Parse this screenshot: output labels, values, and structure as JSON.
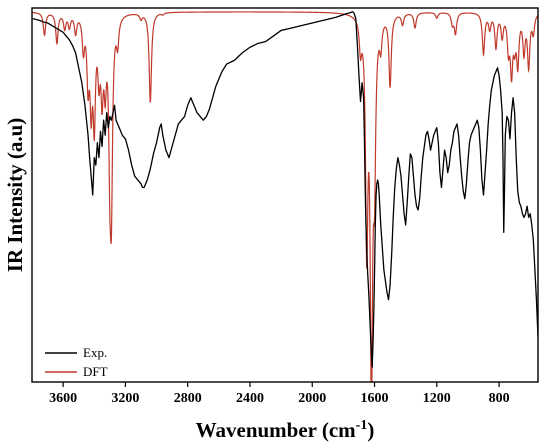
{
  "chart_data": {
    "type": "line",
    "xlabel_main": "Wavenumber (cm",
    "xlabel_sup": "-1",
    "xlabel_end": ")",
    "ylabel": "IR Intensity (a.u)",
    "xlim": [
      3800,
      550
    ],
    "ylim": [
      0,
      1
    ],
    "x_reversed": true,
    "x_ticks": [
      3600,
      3200,
      2800,
      2400,
      2000,
      1600,
      1200,
      800
    ],
    "y_ticks_shown": false,
    "legend_position": "bottom-left",
    "series": [
      {
        "name": "Exp.",
        "color": "#000000",
        "x": [
          3800,
          3760,
          3720,
          3700,
          3680,
          3660,
          3640,
          3620,
          3600,
          3580,
          3560,
          3540,
          3520,
          3510,
          3500,
          3480,
          3460,
          3440,
          3430,
          3420,
          3410,
          3400,
          3390,
          3380,
          3370,
          3360,
          3350,
          3340,
          3330,
          3320,
          3310,
          3300,
          3290,
          3280,
          3270,
          3260,
          3250,
          3240,
          3220,
          3200,
          3180,
          3160,
          3140,
          3120,
          3100,
          3090,
          3080,
          3060,
          3040,
          3020,
          3000,
          2980,
          2970,
          2960,
          2940,
          2920,
          2900,
          2880,
          2860,
          2840,
          2820,
          2800,
          2780,
          2760,
          2740,
          2720,
          2700,
          2680,
          2660,
          2640,
          2620,
          2600,
          2580,
          2550,
          2500,
          2450,
          2400,
          2350,
          2300,
          2250,
          2200,
          2150,
          2100,
          2050,
          2000,
          1950,
          1900,
          1850,
          1800,
          1780,
          1760,
          1740,
          1730,
          1720,
          1710,
          1700,
          1690,
          1680,
          1670,
          1665,
          1660,
          1655,
          1650,
          1645,
          1640,
          1635,
          1630,
          1625,
          1620,
          1615,
          1610,
          1605,
          1600,
          1595,
          1590,
          1585,
          1580,
          1575,
          1570,
          1565,
          1560,
          1550,
          1540,
          1530,
          1520,
          1510,
          1500,
          1490,
          1480,
          1470,
          1460,
          1450,
          1440,
          1430,
          1420,
          1410,
          1400,
          1390,
          1380,
          1370,
          1360,
          1350,
          1340,
          1330,
          1320,
          1310,
          1300,
          1290,
          1280,
          1270,
          1260,
          1250,
          1240,
          1230,
          1220,
          1210,
          1200,
          1190,
          1180,
          1170,
          1160,
          1150,
          1140,
          1130,
          1120,
          1110,
          1100,
          1090,
          1080,
          1070,
          1060,
          1050,
          1040,
          1030,
          1020,
          1010,
          1000,
          990,
          980,
          970,
          960,
          950,
          940,
          930,
          920,
          910,
          900,
          890,
          880,
          870,
          860,
          850,
          840,
          830,
          820,
          810,
          800,
          790,
          780,
          775,
          770,
          765,
          760,
          750,
          740,
          730,
          720,
          710,
          700,
          690,
          680,
          670,
          660,
          650,
          640,
          630,
          620,
          610,
          600,
          590,
          580,
          570,
          560,
          550
        ],
        "y": [
          0.972,
          0.968,
          0.962,
          0.96,
          0.955,
          0.95,
          0.945,
          0.94,
          0.935,
          0.925,
          0.915,
          0.9,
          0.88,
          0.86,
          0.84,
          0.8,
          0.74,
          0.66,
          0.6,
          0.55,
          0.5,
          0.6,
          0.58,
          0.64,
          0.6,
          0.67,
          0.63,
          0.7,
          0.66,
          0.72,
          0.68,
          0.71,
          0.7,
          0.72,
          0.74,
          0.7,
          0.69,
          0.68,
          0.66,
          0.65,
          0.62,
          0.58,
          0.55,
          0.54,
          0.53,
          0.52,
          0.52,
          0.54,
          0.57,
          0.61,
          0.64,
          0.68,
          0.69,
          0.66,
          0.62,
          0.6,
          0.63,
          0.66,
          0.69,
          0.7,
          0.71,
          0.74,
          0.76,
          0.74,
          0.72,
          0.71,
          0.7,
          0.71,
          0.73,
          0.76,
          0.79,
          0.81,
          0.83,
          0.85,
          0.86,
          0.88,
          0.895,
          0.905,
          0.91,
          0.925,
          0.94,
          0.945,
          0.95,
          0.955,
          0.96,
          0.965,
          0.97,
          0.975,
          0.982,
          0.985,
          0.987,
          0.99,
          0.985,
          0.97,
          0.9,
          0.82,
          0.75,
          0.8,
          0.76,
          0.65,
          0.52,
          0.42,
          0.35,
          0.3,
          0.26,
          0.22,
          0.17,
          0.12,
          0.08,
          0.04,
          0.1,
          0.18,
          0.29,
          0.42,
          0.5,
          0.53,
          0.54,
          0.53,
          0.5,
          0.46,
          0.42,
          0.36,
          0.3,
          0.27,
          0.24,
          0.22,
          0.26,
          0.34,
          0.44,
          0.52,
          0.57,
          0.6,
          0.58,
          0.55,
          0.5,
          0.45,
          0.42,
          0.48,
          0.55,
          0.61,
          0.6,
          0.55,
          0.5,
          0.47,
          0.46,
          0.49,
          0.55,
          0.6,
          0.63,
          0.66,
          0.67,
          0.65,
          0.62,
          0.64,
          0.66,
          0.67,
          0.68,
          0.64,
          0.56,
          0.52,
          0.57,
          0.62,
          0.6,
          0.56,
          0.58,
          0.62,
          0.64,
          0.67,
          0.68,
          0.69,
          0.66,
          0.6,
          0.55,
          0.51,
          0.49,
          0.53,
          0.59,
          0.64,
          0.66,
          0.67,
          0.68,
          0.69,
          0.7,
          0.68,
          0.62,
          0.54,
          0.5,
          0.56,
          0.62,
          0.69,
          0.74,
          0.78,
          0.8,
          0.82,
          0.83,
          0.84,
          0.82,
          0.78,
          0.72,
          0.6,
          0.4,
          0.52,
          0.66,
          0.71,
          0.7,
          0.65,
          0.72,
          0.76,
          0.72,
          0.6,
          0.51,
          0.48,
          0.47,
          0.45,
          0.44,
          0.45,
          0.47,
          0.44,
          0.45,
          0.42,
          0.38,
          0.3,
          0.22,
          0.12
        ]
      },
      {
        "name": "DFT",
        "color": "#c0392b",
        "peaks": [
          {
            "x": 3720,
            "y": 0.93
          },
          {
            "x": 3640,
            "y": 0.91
          },
          {
            "x": 3590,
            "y": 0.95
          },
          {
            "x": 3560,
            "y": 0.955
          },
          {
            "x": 3520,
            "y": 0.94
          },
          {
            "x": 3470,
            "y": 0.9
          },
          {
            "x": 3440,
            "y": 0.82
          },
          {
            "x": 3420,
            "y": 0.77
          },
          {
            "x": 3400,
            "y": 0.72
          },
          {
            "x": 3370,
            "y": 0.85
          },
          {
            "x": 3350,
            "y": 0.8
          },
          {
            "x": 3330,
            "y": 0.83
          },
          {
            "x": 3300,
            "y": 0.67
          },
          {
            "x": 3290,
            "y": 0.55
          },
          {
            "x": 3250,
            "y": 0.92
          },
          {
            "x": 3100,
            "y": 0.975
          },
          {
            "x": 3040,
            "y": 0.75
          },
          {
            "x": 2960,
            "y": 0.985
          },
          {
            "x": 1690,
            "y": 0.91
          },
          {
            "x": 1650,
            "y": 0.4
          },
          {
            "x": 1620,
            "y": 0.02
          },
          {
            "x": 1600,
            "y": 0.62
          },
          {
            "x": 1560,
            "y": 0.92
          },
          {
            "x": 1500,
            "y": 0.8
          },
          {
            "x": 1420,
            "y": 0.96
          },
          {
            "x": 1340,
            "y": 0.95
          },
          {
            "x": 1200,
            "y": 0.975
          },
          {
            "x": 1100,
            "y": 0.96
          },
          {
            "x": 1080,
            "y": 0.935
          },
          {
            "x": 900,
            "y": 0.88
          },
          {
            "x": 860,
            "y": 0.95
          },
          {
            "x": 820,
            "y": 0.9
          },
          {
            "x": 780,
            "y": 0.93
          },
          {
            "x": 740,
            "y": 0.9
          },
          {
            "x": 720,
            "y": 0.84
          },
          {
            "x": 700,
            "y": 0.92
          },
          {
            "x": 680,
            "y": 0.86
          },
          {
            "x": 640,
            "y": 0.89
          },
          {
            "x": 610,
            "y": 0.85
          },
          {
            "x": 580,
            "y": 0.94
          }
        ]
      }
    ]
  }
}
